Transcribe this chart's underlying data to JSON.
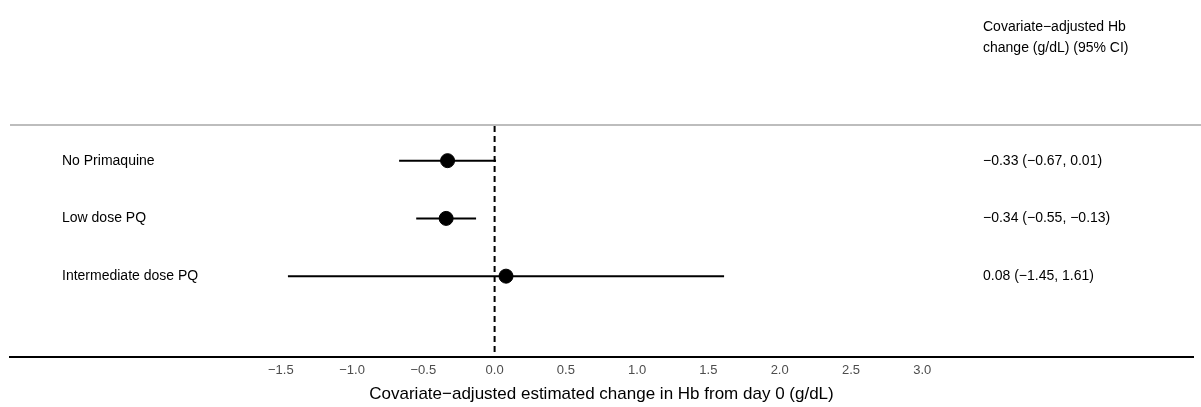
{
  "chart_data": {
    "type": "scatter",
    "orientation": "horizontal",
    "xlabel": "Covariate−adjusted estimated change in Hb from day 0 (g/dL)",
    "annotations": [
      "Covariate−adjusted Hb change (g/dL) (95% CI)",
      "−0.33 (−0.67, 0.01)",
      "−0.34 (−0.55, −0.13)",
      "0.08 (−1.45, 1.61)"
    ],
    "categories": [
      "No Primaquine",
      "Low dose PQ",
      "Intermediate dose PQ"
    ],
    "values": [
      -0.33,
      -0.34,
      0.08
    ],
    "errors": [
      [
        -0.67,
        0.01
      ],
      [
        -0.55,
        -0.13
      ],
      [
        -1.45,
        1.61
      ]
    ],
    "color": "#000000",
    "marker": "circle",
    "xlim": [
      -3.4,
      4.9
    ],
    "xticks": [
      {
        "value": -1.5,
        "label": "−1.5"
      },
      {
        "value": -1,
        "label": "−1.0"
      },
      {
        "value": -0.5,
        "label": "−0.5"
      },
      {
        "value": 0,
        "label": "0.0"
      },
      {
        "value": 0.5,
        "label": "0.5"
      },
      {
        "value": 1,
        "label": "1.0"
      },
      {
        "value": 1.5,
        "label": "1.5"
      },
      {
        "value": 2,
        "label": "2.0"
      },
      {
        "value": 2.5,
        "label": "2.5"
      },
      {
        "value": 3,
        "label": "3.0"
      }
    ],
    "ref_lines": [
      {
        "axis": "x",
        "value": 0,
        "line_style": "dashed",
        "color": "#000000"
      }
    ],
    "grid": false,
    "legend": false
  }
}
